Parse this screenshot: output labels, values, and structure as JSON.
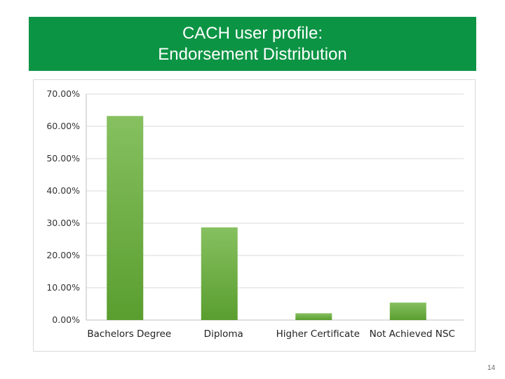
{
  "slide": {
    "title_line1": "CACH user profile:",
    "title_line2": "Endorsement Distribution",
    "page_number": "14",
    "banner_color": "#0b9444"
  },
  "chart_data": {
    "type": "bar",
    "categories": [
      "Bachelors Degree",
      "Diploma",
      "Higher Certificate",
      "Not Achieved NSC"
    ],
    "values": [
      63.2,
      28.7,
      2.1,
      5.4
    ],
    "ylim": [
      0,
      70
    ],
    "yticks": [
      0,
      10,
      20,
      30,
      40,
      50,
      60,
      70
    ],
    "ytick_labels": [
      "0.00%",
      "10.00%",
      "20.00%",
      "30.00%",
      "40.00%",
      "50.00%",
      "60.00%",
      "70.00%"
    ],
    "grid": true,
    "legend": "none",
    "bar_color_top": "#86c060",
    "bar_color_bottom": "#5a9e2f"
  }
}
